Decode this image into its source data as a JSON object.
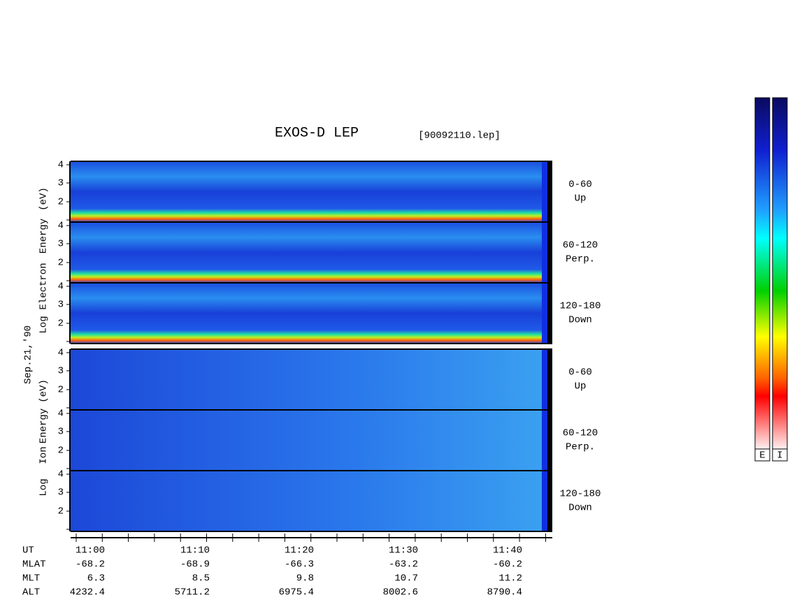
{
  "title": "EXOS-D LEP",
  "file": "[90092110.lep]",
  "date": "Sep.21,'90",
  "electron": {
    "label": [
      "Log",
      "Electron",
      "Energy",
      "(eV)"
    ],
    "panels": [
      {
        "yticks": [
          "4",
          "3",
          "2"
        ],
        "range": "0-60",
        "direction": "Up"
      },
      {
        "yticks": [
          "4",
          "3",
          "2"
        ],
        "range": "60-120",
        "direction": "Perp."
      },
      {
        "yticks": [
          "4",
          "3",
          "2"
        ],
        "range": "120-180",
        "direction": "Down"
      }
    ]
  },
  "ion": {
    "label": [
      "Log",
      "Ion",
      "Energy",
      "(eV)"
    ],
    "panels": [
      {
        "yticks": [
          "4",
          "3",
          "2"
        ],
        "range": "0-60",
        "direction": "Up"
      },
      {
        "yticks": [
          "4",
          "3",
          "2"
        ],
        "range": "60-120",
        "direction": "Perp."
      },
      {
        "yticks": [
          "4",
          "3",
          "2"
        ],
        "range": "120-180",
        "direction": "Down"
      }
    ]
  },
  "ephemeris": {
    "names": [
      "UT",
      "MLAT",
      "MLT",
      "ALT"
    ],
    "UT": [
      "11:00",
      "11:10",
      "11:20",
      "11:30",
      "11:40"
    ],
    "MLAT": [
      -68.2,
      -68.9,
      -66.3,
      -63.2,
      -60.2
    ],
    "MLT": [
      6.3,
      8.5,
      9.8,
      10.7,
      11.2
    ],
    "ALT": [
      4232.4,
      5711.2,
      6975.4,
      8002.6,
      8790.4
    ]
  },
  "colorbars": [
    "E",
    "I"
  ]
}
